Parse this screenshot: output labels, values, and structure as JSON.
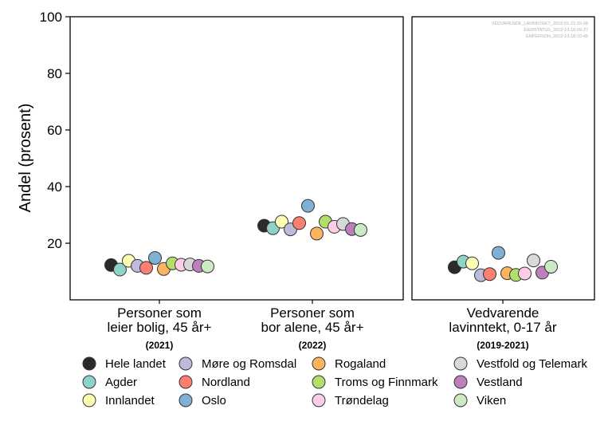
{
  "chart_data": {
    "type": "scatter",
    "ylabel": "Andel (prosent)",
    "ylim": [
      0,
      100
    ],
    "yticks": [
      20,
      40,
      60,
      80,
      100
    ],
    "panels": [
      {
        "id": "left",
        "categories": [
          {
            "lines": [
              "Personer som",
              "leier bolig, 45 år+"
            ],
            "period": "(2021)"
          },
          {
            "lines": [
              "Personer som",
              "bor alene, 45 år+"
            ],
            "period": "(2022)"
          }
        ]
      },
      {
        "id": "right",
        "categories": [
          {
            "lines": [
              "Vedvarende",
              "lavinntekt, 0-17 år"
            ],
            "period": "(2019-2021)"
          }
        ],
        "stamp": [
          "VEDVARENDE_LAVINNTEKT_2023-01-21-15-08",
          "EIERSTATUS_2022-10-18-09-37",
          "ENPERSON_2022-10-18-10-49"
        ]
      }
    ],
    "series": [
      {
        "name": "Hele landet",
        "color": "#2b2b2b",
        "values": [
          12.3,
          26.2,
          11.5
        ]
      },
      {
        "name": "Agder",
        "color": "#8ed3c7",
        "values": [
          10.7,
          25.3,
          13.5
        ]
      },
      {
        "name": "Innlandet",
        "color": "#ffffb3",
        "values": [
          13.8,
          27.6,
          12.9
        ]
      },
      {
        "name": "Møre og Romsdal",
        "color": "#bebada",
        "values": [
          12.0,
          24.9,
          8.7
        ]
      },
      {
        "name": "Nordland",
        "color": "#fb8072",
        "values": [
          11.3,
          27.1,
          9.1
        ]
      },
      {
        "name": "Oslo",
        "color": "#80b1d3",
        "values": [
          14.8,
          33.2,
          16.6
        ]
      },
      {
        "name": "Rogaland",
        "color": "#fdb462",
        "values": [
          10.9,
          23.4,
          9.4
        ]
      },
      {
        "name": "Troms og Finnmark",
        "color": "#b3de69",
        "values": [
          12.9,
          27.6,
          8.8
        ]
      },
      {
        "name": "Trøndelag",
        "color": "#fccde5",
        "values": [
          12.4,
          25.8,
          9.3
        ]
      },
      {
        "name": "Vestfold og Telemark",
        "color": "#d9d9d9",
        "values": [
          12.5,
          26.8,
          13.9
        ]
      },
      {
        "name": "Vestland",
        "color": "#bc80bd",
        "values": [
          12.0,
          25.0,
          9.6
        ]
      },
      {
        "name": "Viken",
        "color": "#ccebc5",
        "values": [
          11.8,
          24.7,
          11.7
        ]
      }
    ]
  }
}
